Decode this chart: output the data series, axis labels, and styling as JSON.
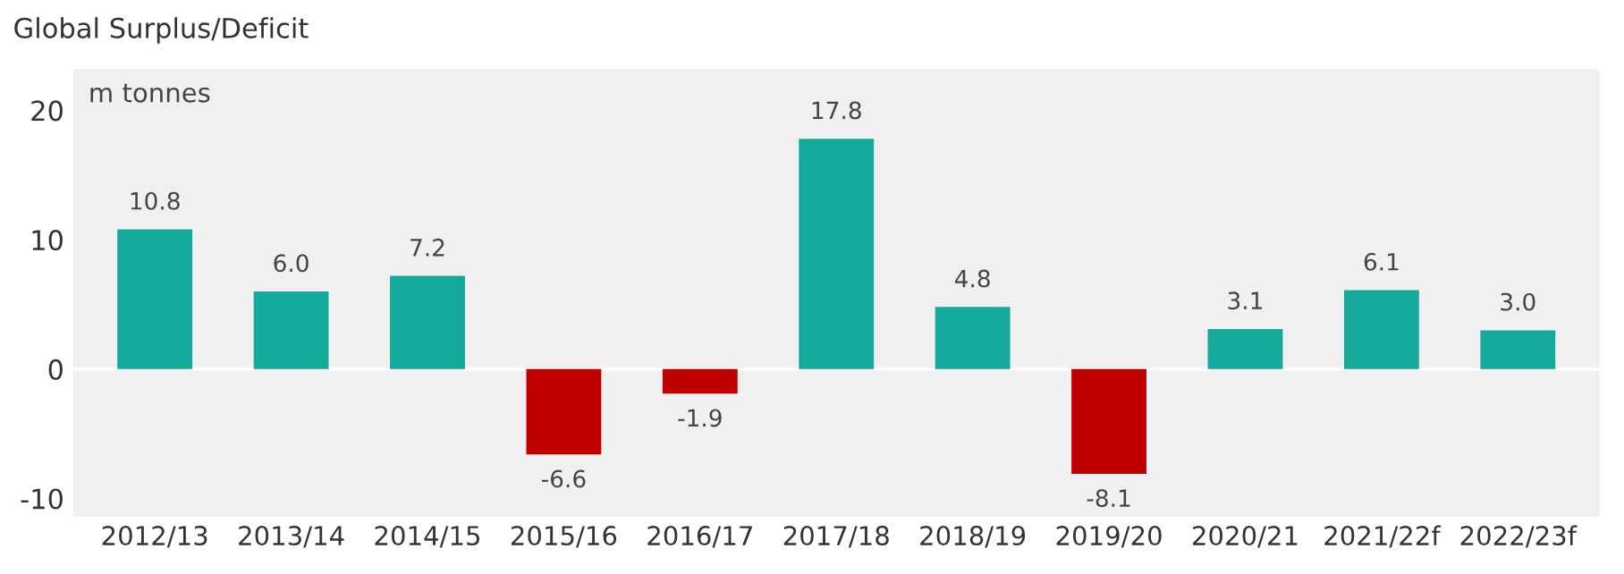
{
  "chart_data": {
    "type": "bar",
    "title": "Global Surplus/Deficit",
    "ylabel": "m tonnes",
    "categories": [
      "2012/13",
      "2013/14",
      "2014/15",
      "2015/16",
      "2016/17",
      "2017/18",
      "2018/19",
      "2019/20",
      "2020/21",
      "2021/22f",
      "2022/23f"
    ],
    "values": [
      10.8,
      6.0,
      7.2,
      -6.6,
      -1.9,
      17.8,
      4.8,
      -8.1,
      3.1,
      6.1,
      3.0
    ],
    "value_labels": [
      "10.8",
      "6.0",
      "7.2",
      "-6.6",
      "-1.9",
      "17.8",
      "4.8",
      "-8.1",
      "3.1",
      "6.1",
      "3.0"
    ],
    "colors": [
      "#14a99b",
      "#14a99b",
      "#14a99b",
      "#c00000",
      "#c00000",
      "#14a99b",
      "#14a99b",
      "#c00000",
      "#14a99b",
      "#14a99b",
      "#14a99b"
    ],
    "ylim": [
      -11.4,
      23.2
    ],
    "yticks": [
      -10,
      0,
      10,
      20
    ],
    "ref_lines": [
      {
        "axis": "y",
        "value": 0,
        "color": "#ffffff"
      }
    ],
    "grid": false,
    "legend": false
  }
}
